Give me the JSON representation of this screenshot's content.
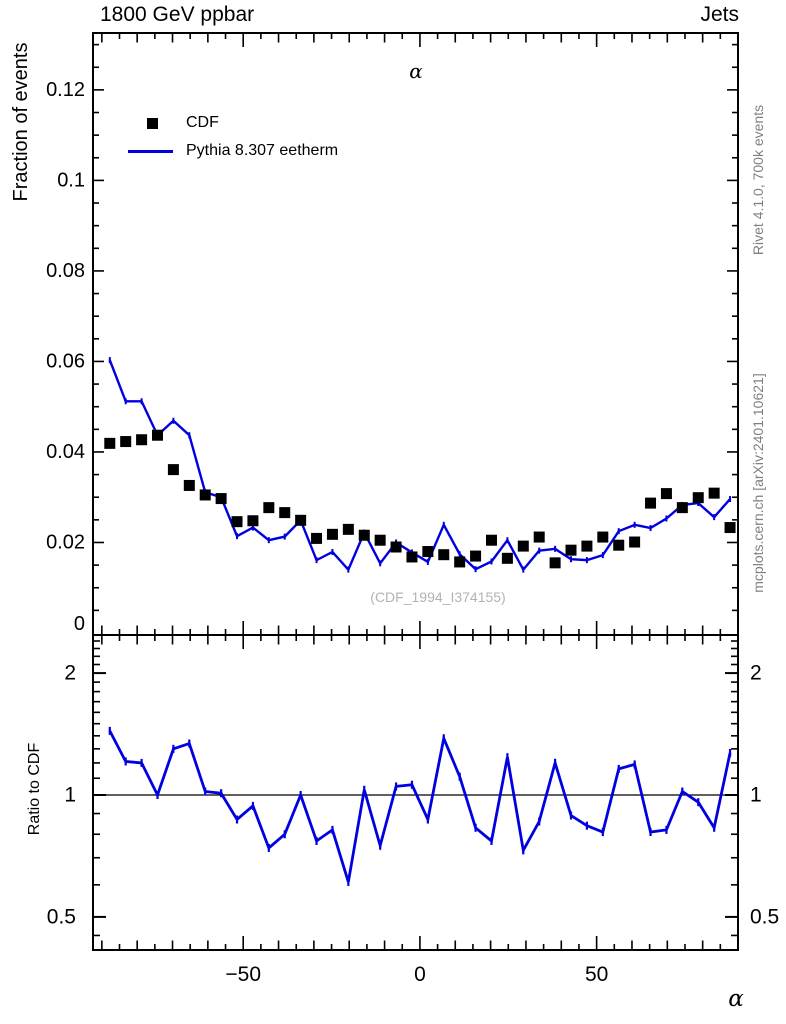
{
  "header": {
    "title_left": "1800 GeV ppbar",
    "title_right": "Jets"
  },
  "side_notes": {
    "top": "Rivet 4.1.0,  700k events",
    "bottom": "mcplots.cern.ch [arXiv:2401.10621]"
  },
  "watermark": "(CDF_1994_I374155)",
  "legend": {
    "items": [
      {
        "label": "CDF",
        "marker": "black-square"
      },
      {
        "label": "Pythia 8.307 eetherm",
        "marker": "blue-line"
      }
    ]
  },
  "colors": {
    "pythia_blue": "#0000e0",
    "cdf_black": "#000000",
    "side_text_gray": "#7f7f7f",
    "watermark_gray": "#b2b2b2"
  },
  "chart_data": [
    {
      "type": "line",
      "title": "α",
      "xlabel": "α",
      "ylabel": "Fraction of events",
      "xlim": [
        -92.5,
        90
      ],
      "ylim": [
        0,
        0.1326
      ],
      "grid": false,
      "legend_position": "upper-left",
      "x": [
        -87.75,
        -83.25,
        -78.75,
        -74.25,
        -69.75,
        -65.25,
        -60.75,
        -56.25,
        -51.75,
        -47.25,
        -42.75,
        -38.25,
        -33.75,
        -29.25,
        -24.75,
        -20.25,
        -15.75,
        -11.25,
        -6.75,
        -2.25,
        2.25,
        6.75,
        11.25,
        15.75,
        20.25,
        24.75,
        29.25,
        33.75,
        38.25,
        42.75,
        47.25,
        51.75,
        56.25,
        60.75,
        65.25,
        69.75,
        74.25,
        78.75,
        83.25,
        87.75
      ],
      "series": [
        {
          "name": "CDF",
          "type": "scatter",
          "marker": "square",
          "color": "#000000",
          "values": [
            0.0419,
            0.0423,
            0.0427,
            0.0437,
            0.0361,
            0.0326,
            0.0305,
            0.0297,
            0.0246,
            0.0248,
            0.0277,
            0.0266,
            0.0249,
            0.0209,
            0.0218,
            0.0229,
            0.0216,
            0.0205,
            0.019,
            0.0168,
            0.018,
            0.0173,
            0.0157,
            0.017,
            0.0205,
            0.0165,
            0.0192,
            0.0212,
            0.0155,
            0.0183,
            0.0192,
            0.0212,
            0.0194,
            0.0201,
            0.0287,
            0.0308,
            0.0277,
            0.0299,
            0.0309,
            0.0233
          ]
        },
        {
          "name": "Pythia 8.307 eetherm",
          "type": "line",
          "color": "#0000e0",
          "values": [
            0.0603,
            0.0512,
            0.0512,
            0.0437,
            0.0469,
            0.0437,
            0.0311,
            0.03,
            0.0214,
            0.0233,
            0.0205,
            0.0213,
            0.0249,
            0.0161,
            0.0179,
            0.014,
            0.0222,
            0.0154,
            0.02,
            0.0178,
            0.0157,
            0.0239,
            0.0174,
            0.0141,
            0.0158,
            0.0205,
            0.014,
            0.0182,
            0.0186,
            0.0163,
            0.0161,
            0.0172,
            0.0225,
            0.0239,
            0.0232,
            0.0253,
            0.0283,
            0.0287,
            0.0256,
            0.0296
          ]
        }
      ],
      "yticks": {
        "major": [
          {
            "v": 0,
            "label": "0"
          },
          {
            "v": 0.02,
            "label": "0.02"
          },
          {
            "v": 0.04,
            "label": "0.04"
          },
          {
            "v": 0.06,
            "label": "0.06"
          },
          {
            "v": 0.08,
            "label": "0.08"
          },
          {
            "v": 0.1,
            "label": "0.1"
          },
          {
            "v": 0.12,
            "label": "0.12"
          }
        ],
        "minor_step": 0.005
      },
      "xticks": {
        "major": [
          {
            "v": -50,
            "label": "−50"
          },
          {
            "v": 0,
            "label": "0"
          },
          {
            "v": 50,
            "label": "50"
          }
        ],
        "medium_step": 10,
        "minor_step": 5
      }
    },
    {
      "type": "line",
      "name": "ratio",
      "ylabel": "Ratio to CDF",
      "yscale": "log",
      "ylim": [
        0.414,
        2.48
      ],
      "unity_line": 1,
      "x": [
        -87.75,
        -83.25,
        -78.75,
        -74.25,
        -69.75,
        -65.25,
        -60.75,
        -56.25,
        -51.75,
        -47.25,
        -42.75,
        -38.25,
        -33.75,
        -29.25,
        -24.75,
        -20.25,
        -15.75,
        -11.25,
        -6.75,
        -2.25,
        2.25,
        6.75,
        11.25,
        15.75,
        20.25,
        24.75,
        29.25,
        33.75,
        38.25,
        42.75,
        47.25,
        51.75,
        56.25,
        60.75,
        65.25,
        69.75,
        74.25,
        78.75,
        83.25,
        87.75
      ],
      "series": [
        {
          "name": "Pythia/CDF",
          "type": "line",
          "color": "#0000e0",
          "values": [
            1.44,
            1.21,
            1.2,
            1.0,
            1.3,
            1.34,
            1.02,
            1.01,
            0.87,
            0.94,
            0.74,
            0.8,
            1.0,
            0.77,
            0.82,
            0.61,
            1.03,
            0.75,
            1.05,
            1.06,
            0.87,
            1.38,
            1.11,
            0.83,
            0.77,
            1.24,
            0.73,
            0.86,
            1.2,
            0.89,
            0.84,
            0.81,
            1.16,
            1.19,
            0.81,
            0.82,
            1.02,
            0.96,
            0.83,
            1.27
          ]
        }
      ],
      "yticks": {
        "major": [
          {
            "v": 0.5,
            "label": "0.5"
          },
          {
            "v": 1,
            "label": "1"
          },
          {
            "v": 2,
            "label": "2"
          }
        ],
        "minor": [
          0.45,
          0.6,
          0.7,
          0.8,
          0.9,
          1.1,
          1.2,
          1.3,
          1.4,
          1.5,
          1.6,
          1.7,
          1.8,
          1.9,
          2.1,
          2.2,
          2.3,
          2.4
        ]
      }
    }
  ]
}
